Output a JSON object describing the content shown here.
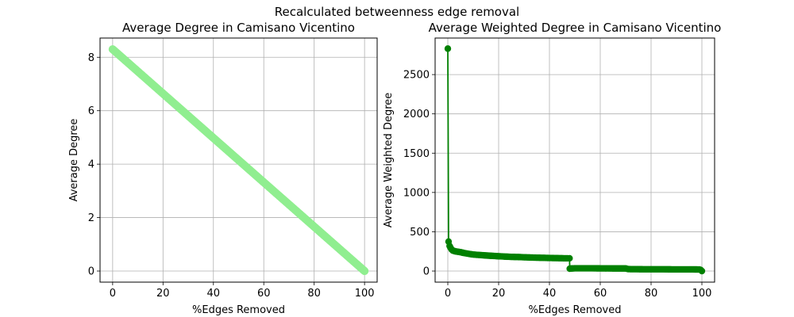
{
  "suptitle": "Recalculated betweenness edge removal",
  "chart_data": [
    {
      "type": "scatter",
      "title": "Average Degree in Camisano Vicentino",
      "xlabel": "%Edges Removed",
      "ylabel": "Average Degree",
      "xlim": [
        -5,
        105
      ],
      "ylim": [
        -0.415,
        8.72
      ],
      "xticks": [
        0,
        20,
        40,
        60,
        80,
        100
      ],
      "yticks": [
        0,
        2,
        4,
        6,
        8
      ],
      "grid": true,
      "color": "#90ee90",
      "series": [
        {
          "x": [
            0,
            100
          ],
          "y": [
            8.3,
            0
          ],
          "style": "dense-markers"
        }
      ]
    },
    {
      "type": "line",
      "title": "Average Weighted Degree in Camisano Vicentino",
      "xlabel": "%Edges Removed",
      "ylabel": "Average Weighted Degree",
      "xlim": [
        -5,
        105
      ],
      "ylim": [
        -141,
        2965
      ],
      "xticks": [
        0,
        20,
        40,
        60,
        80,
        100
      ],
      "yticks": [
        0,
        500,
        1000,
        1500,
        2000,
        2500
      ],
      "grid": true,
      "color": "#008000",
      "series": [
        {
          "x": [
            0,
            0.3,
            0.7,
            1,
            1.5,
            2,
            3,
            4,
            5,
            6,
            8,
            10,
            12,
            15,
            18,
            20,
            22,
            25,
            28,
            30,
            32,
            35,
            38,
            40,
            42,
            45,
            47,
            47.9,
            48,
            48.3,
            50,
            55,
            60,
            65,
            70,
            71,
            72,
            75,
            80,
            85,
            90,
            95,
            99,
            99.5,
            100
          ],
          "y": [
            2830,
            375,
            320,
            300,
            275,
            260,
            250,
            245,
            240,
            232,
            220,
            210,
            205,
            198,
            192,
            188,
            185,
            180,
            178,
            175,
            173,
            170,
            168,
            166,
            165,
            163,
            162,
            162,
            30,
            32,
            35,
            35,
            34,
            33,
            33,
            25,
            24,
            23,
            22,
            22,
            21,
            21,
            20,
            15,
            0
          ]
        }
      ]
    }
  ]
}
